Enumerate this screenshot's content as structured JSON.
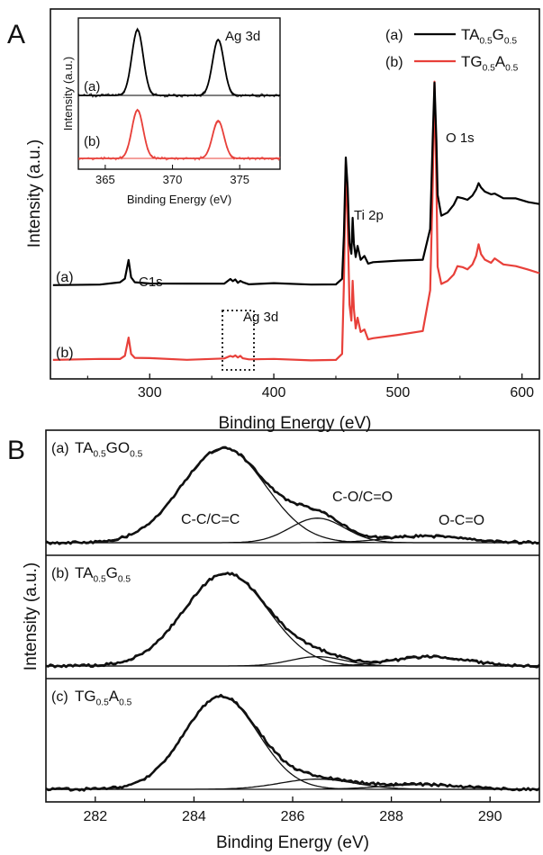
{
  "chart_data": [
    {
      "panel_label": "A",
      "type": "line",
      "xlabel": "Binding Energy (eV)",
      "ylabel": "Intensity (a.u.)",
      "xlim": [
        220,
        614
      ],
      "x_ticks": [
        300,
        400,
        500,
        600
      ],
      "grid": false,
      "legend_position": "top-right",
      "colors": {
        "a": "#000000",
        "b": "#e8403a"
      },
      "legend": [
        {
          "marker": "(a)",
          "base": "TA",
          "sub1": "0.5",
          "mid": "G",
          "sub2": "0.5"
        },
        {
          "marker": "(b)",
          "base": "TG",
          "sub1": "0.5",
          "mid": "A",
          "sub2": "0.5"
        }
      ],
      "curve_labels": [
        "(a)",
        "(b)"
      ],
      "annotations": [
        "C1s",
        "Ag 3d",
        "Ti 2p",
        "O 1s"
      ],
      "series": [
        {
          "marker": "(a)",
          "offset": 0.55,
          "x": [
            222,
            260,
            276,
            280,
            283,
            285,
            288,
            300,
            330,
            360,
            365,
            367,
            369,
            371,
            373,
            375,
            380,
            400,
            430,
            450,
            455,
            456.5,
            458,
            459.5,
            461,
            462.5,
            463.5,
            464.5,
            466,
            467.5,
            470,
            473,
            476,
            480,
            500,
            520,
            526,
            528,
            529.5,
            531,
            532,
            535,
            540,
            545,
            548,
            552,
            556,
            560,
            563,
            565,
            567,
            570,
            575,
            578,
            585,
            595,
            605,
            614
          ],
          "y": [
            0,
            0.002,
            0.01,
            0.04,
            0.18,
            0.05,
            0.015,
            0.01,
            0.005,
            0.01,
            0.04,
            0.02,
            0.04,
            0.015,
            0.03,
            0.01,
            0.005,
            0.002,
            0,
            0.005,
            0.04,
            0.35,
            0.92,
            0.7,
            0.3,
            0.22,
            0.48,
            0.3,
            0.2,
            0.28,
            0.18,
            0.21,
            0.15,
            0.16,
            0.17,
            0.18,
            0.4,
            1.05,
            1.47,
            1.05,
            0.65,
            0.5,
            0.52,
            0.58,
            0.63,
            0.62,
            0.61,
            0.64,
            0.69,
            0.73,
            0.7,
            0.67,
            0.65,
            0.66,
            0.62,
            0.62,
            0.6,
            0.58
          ]
        },
        {
          "marker": "(b)",
          "offset": 0,
          "x": [
            222,
            260,
            276,
            280,
            283,
            285,
            288,
            300,
            330,
            360,
            365,
            367,
            369,
            371,
            373,
            375,
            380,
            400,
            430,
            450,
            455,
            456.5,
            458,
            459.5,
            461,
            462.5,
            463.5,
            464.5,
            466,
            467.5,
            470,
            473,
            476,
            480,
            500,
            520,
            526,
            528,
            529.5,
            531,
            532,
            535,
            540,
            545,
            548,
            552,
            556,
            560,
            563,
            565,
            567,
            570,
            575,
            578,
            585,
            595,
            605,
            614
          ],
          "y": [
            0,
            0.002,
            0.008,
            0.035,
            0.16,
            0.045,
            0.012,
            0.01,
            0.005,
            0.01,
            0.035,
            0.02,
            0.035,
            0.015,
            0.025,
            0.01,
            0.005,
            0.002,
            0,
            0.005,
            0.04,
            0.55,
            1.42,
            1.0,
            0.4,
            0.28,
            0.58,
            0.37,
            0.23,
            0.31,
            0.2,
            0.22,
            0.15,
            0.16,
            0.18,
            0.21,
            0.5,
            1.25,
            2.02,
            1.3,
            0.68,
            0.55,
            0.58,
            0.62,
            0.68,
            0.67,
            0.66,
            0.69,
            0.75,
            0.84,
            0.77,
            0.73,
            0.71,
            0.74,
            0.7,
            0.68,
            0.66,
            0.63
          ]
        }
      ]
    },
    {
      "panel_label": "inset",
      "type": "line",
      "title": "Ag 3d",
      "xlabel": "Binding Energy (eV)",
      "ylabel": "Intensity (a.u.)",
      "xlim": [
        363,
        378
      ],
      "x_ticks": [
        365,
        370,
        375
      ],
      "curve_labels": [
        "(a)",
        "(b)"
      ],
      "peaks": [
        367.4,
        373.4
      ],
      "series": [
        {
          "marker": "(a)",
          "color": "#000000",
          "peak_heights": [
            1.0,
            0.85
          ]
        },
        {
          "marker": "(b)",
          "color": "#e8403a",
          "peak_heights": [
            0.9,
            0.7
          ]
        }
      ]
    },
    {
      "panel_label": "B",
      "type": "line",
      "xlabel": "Binding Energy (eV)",
      "ylabel": "Intensity (a.u.)",
      "xlim": [
        281,
        291
      ],
      "x_ticks": [
        282,
        284,
        286,
        288,
        290
      ],
      "color": "#000000",
      "subpanels": [
        {
          "marker": "(a)",
          "base": "TA",
          "sub1": "0.5",
          "mid": "GO",
          "sub2": "0.5",
          "peak_labels": [
            "C-C/C=C",
            "C-O/C=O",
            "O-C=O"
          ],
          "components": [
            {
              "center": 284.6,
              "height": 1.0,
              "sigma": 0.85
            },
            {
              "center": 286.5,
              "height": 0.26,
              "sigma": 0.55
            },
            {
              "center": 288.7,
              "height": 0.07,
              "sigma": 0.8
            }
          ]
        },
        {
          "marker": "(b)",
          "base": "TA",
          "sub1": "0.5",
          "mid": "G",
          "sub2": "0.5",
          "components": [
            {
              "center": 284.65,
              "height": 1.0,
              "sigma": 0.85
            },
            {
              "center": 286.5,
              "height": 0.1,
              "sigma": 0.55
            },
            {
              "center": 288.8,
              "height": 0.1,
              "sigma": 0.75
            }
          ]
        },
        {
          "marker": "(c)",
          "base": "TG",
          "sub1": "0.5",
          "mid": "A",
          "sub2": "0.5",
          "components": [
            {
              "center": 284.55,
              "height": 1.0,
              "sigma": 0.75
            },
            {
              "center": 286.5,
              "height": 0.11,
              "sigma": 0.75
            },
            {
              "center": 288.6,
              "height": 0.05,
              "sigma": 0.8
            }
          ]
        }
      ]
    }
  ]
}
